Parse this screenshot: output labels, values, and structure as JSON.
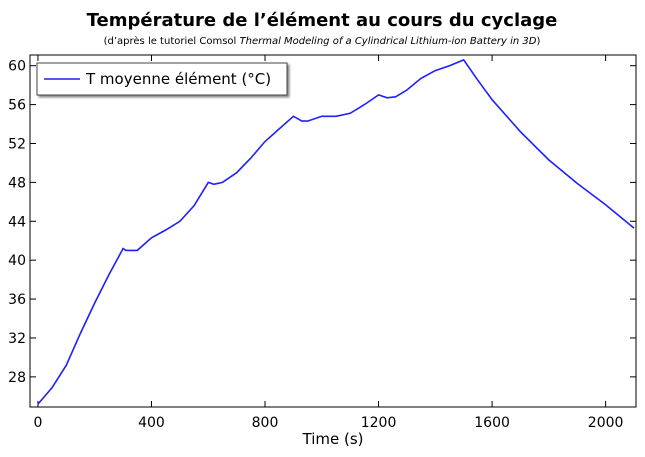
{
  "chart_data": {
    "type": "line",
    "title": "Température de l’élément au cours du cyclage",
    "subtitle": [
      "(d’après le tutoriel Comsol",
      "Thermal Modeling of a Cylindrical Lithium-ion Battery in 3D",
      ")"
    ],
    "x_label": "Time (s)",
    "x": [
      0,
      50,
      100,
      150,
      200,
      250,
      300,
      310,
      350,
      400,
      450,
      500,
      550,
      600,
      620,
      650,
      700,
      750,
      800,
      850,
      900,
      930,
      950,
      1000,
      1050,
      1100,
      1150,
      1200,
      1230,
      1260,
      1300,
      1350,
      1400,
      1450,
      1500,
      1550,
      1600,
      1700,
      1800,
      1900,
      2000,
      2100
    ],
    "series": [
      {
        "name": "T moyenne élément (°C)",
        "color": "#1f1fff",
        "values": [
          25.2,
          26.9,
          29.2,
          32.5,
          35.6,
          38.5,
          41.2,
          41.0,
          41.0,
          42.3,
          43.1,
          44.0,
          45.6,
          48.0,
          47.8,
          48.0,
          49.0,
          50.5,
          52.2,
          53.5,
          54.8,
          54.3,
          54.3,
          54.8,
          54.8,
          55.1,
          56.0,
          57.0,
          56.7,
          56.8,
          57.5,
          58.7,
          59.5,
          60.0,
          60.6,
          58.5,
          56.5,
          53.2,
          50.3,
          47.9,
          45.7,
          43.3
        ]
      }
    ],
    "xlim": [
      -28,
      2107
    ],
    "xticks": [
      0,
      400,
      800,
      1200,
      1600,
      2000
    ],
    "ylim": [
      24.9,
      61.1
    ],
    "yticks": [
      28,
      32,
      36,
      40,
      44,
      48,
      52,
      56,
      60
    ],
    "legend": "upper left"
  }
}
